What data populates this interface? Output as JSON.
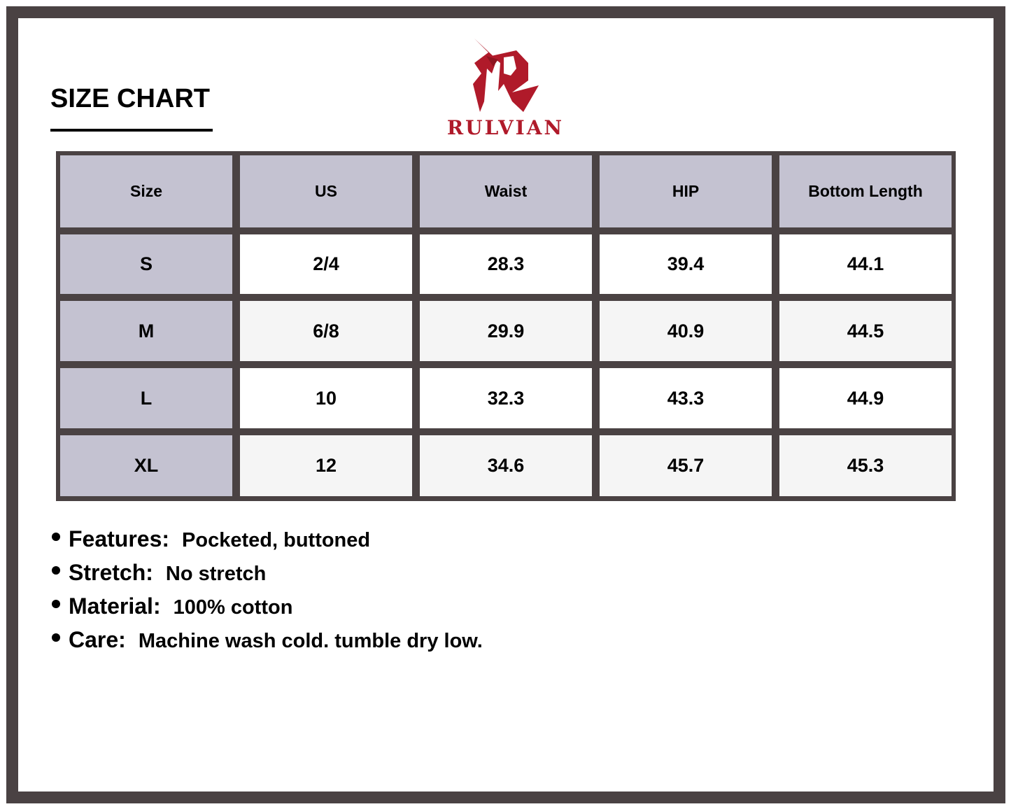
{
  "title": "SIZE CHART",
  "brand": {
    "name": "RULVIAN",
    "color": "#b01a2a"
  },
  "table": {
    "headers": [
      "Size",
      "US",
      "Waist",
      "HIP",
      "Bottom Length"
    ],
    "rows": [
      [
        "S",
        "2/4",
        "28.3",
        "39.4",
        "44.1"
      ],
      [
        "M",
        "6/8",
        "29.9",
        "40.9",
        "44.5"
      ],
      [
        "L",
        "10",
        "32.3",
        "43.3",
        "44.9"
      ],
      [
        "XL",
        "12",
        "34.6",
        "45.7",
        "45.3"
      ]
    ]
  },
  "notes": [
    {
      "label": "Features:",
      "value": "Pocketed, buttoned"
    },
    {
      "label": "Stretch:",
      "value": "No stretch"
    },
    {
      "label": "Material:",
      "value": "100% cotton"
    },
    {
      "label": "Care:",
      "value": "Machine wash cold. tumble dry low."
    }
  ]
}
